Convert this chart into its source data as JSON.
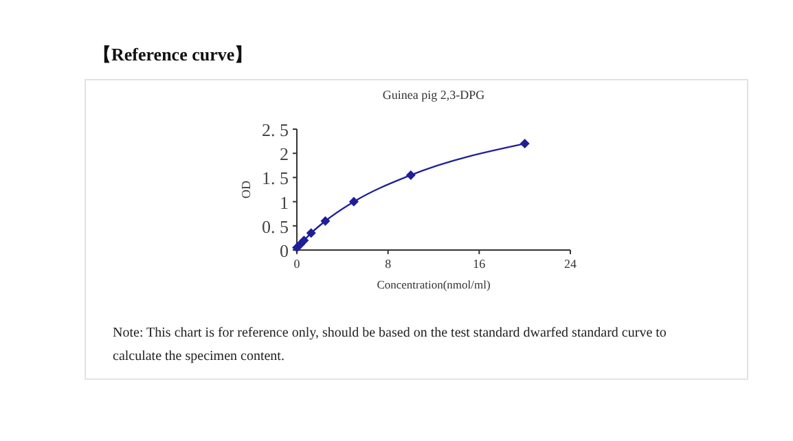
{
  "chart_data": {
    "type": "line",
    "title": "【Reference curve】",
    "subtitle": "Guinea pig 2,3-DPG",
    "xlabel": "Concentration(nmol/ml)",
    "ylabel": "OD",
    "x": [
      0,
      0.3125,
      0.625,
      1.25,
      2.5,
      5,
      10,
      20
    ],
    "series": [
      {
        "color": "#1f1f99",
        "values": [
          0.05,
          0.12,
          0.2,
          0.35,
          0.6,
          1.0,
          1.55,
          2.2
        ]
      }
    ],
    "xlim": [
      0,
      24
    ],
    "xticks": [
      0,
      8,
      16,
      24
    ],
    "ylim": [
      0,
      2.5
    ],
    "yticks": [
      {
        "value": 0,
        "label": "0"
      },
      {
        "value": 0.5,
        "label": "0. 5"
      },
      {
        "value": 1,
        "label": "1"
      },
      {
        "value": 1.5,
        "label": "1. 5"
      },
      {
        "value": 2,
        "label": "2"
      },
      {
        "value": 2.5,
        "label": "2. 5"
      }
    ],
    "grid": false,
    "marker": "diamond",
    "line_style": "solid",
    "annotations": [
      "Note: This chart is for reference only, should be based on the test standard dwarfed standard curve to calculate the specimen content."
    ]
  }
}
